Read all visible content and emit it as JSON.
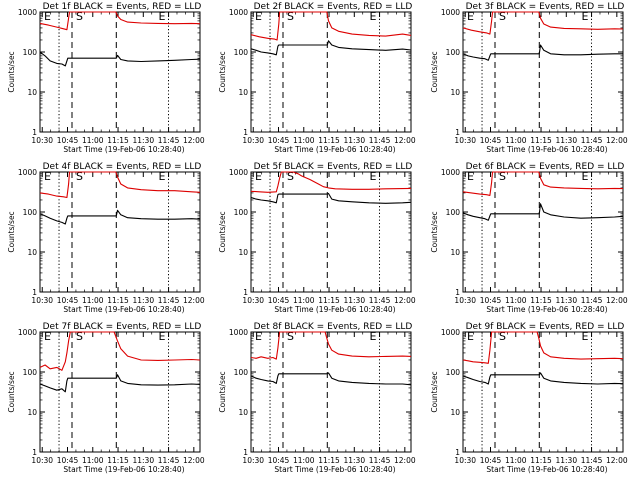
{
  "figure": {
    "panel_titles": [
      "Det 1f BLACK = Events, RED = LLD",
      "Det 2f BLACK = Events, RED = LLD",
      "Det 3f BLACK = Events, RED = LLD",
      "Det 4f BLACK = Events, RED = LLD",
      "Det 5f BLACK = Events, RED = LLD",
      "Det 6f BLACK = Events, RED = LLD",
      "Det 7f BLACK = Events, RED = LLD",
      "Det 8f BLACK = Events, RED = LLD",
      "Det 9f BLACK = Events, RED = LLD"
    ],
    "xlabel": "Start Time (19-Feb-06 10:28:40)",
    "ylabel": "Counts/sec",
    "x_tick_labels": [
      "10:30",
      "10:45",
      "11:00",
      "11:15",
      "11:30",
      "11:45",
      "12:00"
    ],
    "y_tick_labels": [
      "1",
      "10",
      "100",
      "1000"
    ],
    "marker_labels": [
      "E",
      "S",
      "E"
    ],
    "colors": {
      "events": "#000000",
      "lld": "#dd0000",
      "frame": "#000000"
    }
  },
  "chart_data": [
    {
      "type": "line",
      "title": "Det 1f BLACK = Events, RED = LLD",
      "xlabel": "Start Time (19-Feb-06 10:28:40)",
      "ylabel": "Counts/sec",
      "x_unit": "minutes after 10:28:40",
      "ylim": [
        1,
        1000
      ],
      "yscale": "log",
      "xlim": [
        0,
        95
      ],
      "vlines": [
        {
          "x": 11.3,
          "style": "dotted"
        },
        {
          "x": 19,
          "style": "dashed"
        },
        {
          "x": 45.3,
          "style": "dashed"
        },
        {
          "x": 76.3,
          "style": "dotted"
        }
      ],
      "series": [
        {
          "name": "LLD",
          "color": "#dd0000",
          "x": [
            0,
            5,
            10,
            14,
            16,
            17,
            17.5,
            19,
            45,
            46,
            48,
            52,
            60,
            70,
            80,
            90,
            95
          ],
          "y": [
            520,
            470,
            420,
            380,
            360,
            700,
            1000,
            1000,
            1000,
            800,
            650,
            560,
            530,
            520,
            510,
            520,
            510
          ]
        },
        {
          "name": "Events",
          "color": "#000000",
          "x": [
            0,
            3,
            6,
            10,
            13,
            15,
            16,
            16.5,
            45.3,
            46,
            48,
            52,
            60,
            70,
            80,
            90,
            95
          ],
          "y": [
            100,
            80,
            60,
            52,
            50,
            45,
            60,
            70,
            70,
            82,
            65,
            60,
            58,
            60,
            62,
            65,
            66
          ]
        }
      ]
    },
    {
      "type": "line",
      "title": "Det 2f BLACK = Events, RED = LLD",
      "xlabel": "Start Time (19-Feb-06 10:28:40)",
      "ylabel": "Counts/sec",
      "x_unit": "minutes after 10:28:40",
      "ylim": [
        1,
        1000
      ],
      "yscale": "log",
      "xlim": [
        0,
        95
      ],
      "vlines": [
        {
          "x": 11.3,
          "style": "dotted"
        },
        {
          "x": 19,
          "style": "dashed"
        },
        {
          "x": 45.3,
          "style": "dashed"
        },
        {
          "x": 76.3,
          "style": "dotted"
        }
      ],
      "series": [
        {
          "name": "LLD",
          "color": "#dd0000",
          "x": [
            0,
            5,
            10,
            14,
            15.5,
            16.5,
            17,
            19,
            45,
            46,
            48,
            52,
            60,
            70,
            80,
            90,
            95
          ],
          "y": [
            270,
            240,
            220,
            210,
            200,
            500,
            1000,
            1000,
            1000,
            600,
            400,
            330,
            280,
            260,
            250,
            280,
            260
          ]
        },
        {
          "name": "Events",
          "color": "#000000",
          "x": [
            0,
            3,
            6,
            10,
            13,
            15,
            16,
            16.5,
            45.3,
            46,
            48,
            52,
            60,
            70,
            80,
            90,
            95
          ],
          "y": [
            120,
            110,
            100,
            95,
            90,
            85,
            140,
            150,
            150,
            190,
            150,
            130,
            120,
            115,
            110,
            118,
            112
          ]
        }
      ]
    },
    {
      "type": "line",
      "title": "Det 3f BLACK = Events, RED = LLD",
      "xlabel": "Start Time (19-Feb-06 10:28:40)",
      "ylabel": "Counts/sec",
      "x_unit": "minutes after 10:28:40",
      "ylim": [
        1,
        1000
      ],
      "yscale": "log",
      "xlim": [
        0,
        95
      ],
      "vlines": [
        {
          "x": 11.3,
          "style": "dotted"
        },
        {
          "x": 19,
          "style": "dashed"
        },
        {
          "x": 45.3,
          "style": "dashed"
        },
        {
          "x": 76.3,
          "style": "dotted"
        }
      ],
      "series": [
        {
          "name": "LLD",
          "color": "#dd0000",
          "x": [
            0,
            5,
            10,
            14,
            16,
            17,
            17.5,
            19,
            45,
            46,
            48,
            52,
            60,
            70,
            80,
            90,
            95
          ],
          "y": [
            400,
            350,
            320,
            300,
            280,
            600,
            1000,
            1000,
            1000,
            700,
            500,
            420,
            390,
            380,
            370,
            380,
            375
          ]
        },
        {
          "name": "Events",
          "color": "#000000",
          "x": [
            0,
            3,
            6,
            10,
            13,
            15,
            16,
            16.5,
            45.3,
            46,
            48,
            52,
            60,
            70,
            80,
            90,
            95
          ],
          "y": [
            90,
            80,
            75,
            70,
            68,
            62,
            80,
            90,
            90,
            150,
            110,
            90,
            85,
            85,
            88,
            90,
            90
          ]
        }
      ]
    },
    {
      "type": "line",
      "title": "Det 4f BLACK = Events, RED = LLD",
      "xlabel": "Start Time (19-Feb-06 10:28:40)",
      "ylabel": "Counts/sec",
      "x_unit": "minutes after 10:28:40",
      "ylim": [
        1,
        1000
      ],
      "yscale": "log",
      "xlim": [
        0,
        95
      ],
      "vlines": [
        {
          "x": 11.3,
          "style": "dotted"
        },
        {
          "x": 19,
          "style": "dashed"
        },
        {
          "x": 45.3,
          "style": "dashed"
        },
        {
          "x": 76.3,
          "style": "dotted"
        }
      ],
      "series": [
        {
          "name": "LLD",
          "color": "#dd0000",
          "x": [
            0,
            5,
            10,
            14,
            16,
            17,
            17.5,
            19,
            45,
            46,
            48,
            52,
            60,
            70,
            80,
            90,
            95
          ],
          "y": [
            300,
            280,
            250,
            240,
            230,
            500,
            1000,
            1000,
            1000,
            750,
            500,
            400,
            360,
            340,
            340,
            320,
            310
          ]
        },
        {
          "name": "Events",
          "color": "#000000",
          "x": [
            0,
            3,
            6,
            10,
            13,
            15,
            16,
            16.5,
            45.3,
            46,
            48,
            52,
            60,
            70,
            80,
            90,
            95
          ],
          "y": [
            90,
            80,
            70,
            60,
            55,
            50,
            70,
            80,
            80,
            110,
            85,
            72,
            68,
            66,
            66,
            68,
            66
          ]
        }
      ]
    },
    {
      "type": "line",
      "title": "Det 5f BLACK = Events, RED = LLD",
      "xlabel": "Start Time (19-Feb-06 10:28:40)",
      "ylabel": "Counts/sec",
      "x_unit": "minutes after 10:28:40",
      "ylim": [
        1,
        1000
      ],
      "yscale": "log",
      "xlim": [
        0,
        95
      ],
      "vlines": [
        {
          "x": 11.3,
          "style": "dotted"
        },
        {
          "x": 19,
          "style": "dashed"
        },
        {
          "x": 45.3,
          "style": "dashed"
        },
        {
          "x": 76.3,
          "style": "dotted"
        }
      ],
      "series": [
        {
          "name": "LLD",
          "color": "#dd0000",
          "x": [
            0,
            5,
            10,
            15,
            16,
            17,
            18,
            25,
            28,
            30,
            35,
            40,
            43,
            46,
            50,
            60,
            70,
            80,
            95
          ],
          "y": [
            330,
            320,
            310,
            320,
            450,
            700,
            1000,
            1000,
            900,
            800,
            650,
            500,
            430,
            400,
            380,
            370,
            370,
            380,
            390
          ]
        },
        {
          "name": "Events",
          "color": "#000000",
          "x": [
            0,
            3,
            6,
            10,
            13,
            15,
            16,
            16.5,
            45.3,
            46,
            48,
            52,
            60,
            70,
            80,
            90,
            95
          ],
          "y": [
            230,
            210,
            200,
            190,
            180,
            170,
            270,
            280,
            280,
            290,
            210,
            190,
            180,
            170,
            165,
            170,
            175
          ]
        }
      ]
    },
    {
      "type": "line",
      "title": "Det 6f BLACK = Events, RED = LLD",
      "xlabel": "Start Time (19-Feb-06 10:28:40)",
      "ylabel": "Counts/sec",
      "x_unit": "minutes after 10:28:40",
      "ylim": [
        1,
        1000
      ],
      "yscale": "log",
      "xlim": [
        0,
        95
      ],
      "vlines": [
        {
          "x": 11.3,
          "style": "dotted"
        },
        {
          "x": 19,
          "style": "dashed"
        },
        {
          "x": 45.3,
          "style": "dashed"
        },
        {
          "x": 76.3,
          "style": "dotted"
        }
      ],
      "series": [
        {
          "name": "LLD",
          "color": "#dd0000",
          "x": [
            0,
            5,
            10,
            14,
            16,
            17,
            17.5,
            19,
            45,
            46,
            48,
            52,
            60,
            70,
            80,
            90,
            95
          ],
          "y": [
            320,
            300,
            280,
            270,
            260,
            550,
            1000,
            1000,
            1000,
            700,
            480,
            420,
            400,
            390,
            380,
            390,
            385
          ]
        },
        {
          "name": "Events",
          "color": "#000000",
          "x": [
            0,
            3,
            6,
            10,
            13,
            15,
            16,
            16.5,
            45.3,
            46,
            48,
            52,
            60,
            70,
            80,
            90,
            95
          ],
          "y": [
            95,
            85,
            78,
            72,
            68,
            62,
            80,
            90,
            90,
            160,
            100,
            85,
            75,
            70,
            72,
            75,
            78
          ]
        }
      ]
    },
    {
      "type": "line",
      "title": "Det 7f BLACK = Events, RED = LLD",
      "xlabel": "Start Time (19-Feb-06 10:28:40)",
      "ylabel": "Counts/sec",
      "x_unit": "minutes after 10:28:40",
      "ylim": [
        1,
        1000
      ],
      "yscale": "log",
      "xlim": [
        0,
        95
      ],
      "vlines": [
        {
          "x": 11.3,
          "style": "dotted"
        },
        {
          "x": 19,
          "style": "dashed"
        },
        {
          "x": 45.3,
          "style": "dashed"
        },
        {
          "x": 76.3,
          "style": "dotted"
        }
      ],
      "series": [
        {
          "name": "LLD",
          "color": "#dd0000",
          "x": [
            0,
            3,
            6,
            10,
            13,
            15,
            16,
            17,
            18,
            19,
            44,
            46,
            48,
            52,
            60,
            70,
            80,
            90,
            95
          ],
          "y": [
            130,
            150,
            120,
            130,
            110,
            180,
            300,
            600,
            1000,
            1000,
            1000,
            600,
            380,
            250,
            200,
            195,
            200,
            205,
            200
          ]
        },
        {
          "name": "Events",
          "color": "#000000",
          "x": [
            0,
            3,
            6,
            10,
            13,
            15,
            16,
            16.5,
            45.3,
            46,
            48,
            52,
            60,
            70,
            80,
            90,
            95
          ],
          "y": [
            50,
            45,
            40,
            35,
            38,
            32,
            60,
            70,
            70,
            85,
            60,
            52,
            48,
            47,
            48,
            50,
            49
          ]
        }
      ]
    },
    {
      "type": "line",
      "title": "Det 8f BLACK = Events, RED = LLD",
      "xlabel": "Start Time (19-Feb-06 10:28:40)",
      "ylabel": "Counts/sec",
      "x_unit": "minutes after 10:28:40",
      "ylim": [
        1,
        1000
      ],
      "yscale": "log",
      "xlim": [
        0,
        95
      ],
      "vlines": [
        {
          "x": 11.3,
          "style": "dotted"
        },
        {
          "x": 19,
          "style": "dashed"
        },
        {
          "x": 45.3,
          "style": "dashed"
        },
        {
          "x": 76.3,
          "style": "dotted"
        }
      ],
      "series": [
        {
          "name": "LLD",
          "color": "#dd0000",
          "x": [
            0,
            3,
            6,
            10,
            13,
            15,
            16,
            17,
            19,
            44,
            45,
            46,
            48,
            52,
            60,
            70,
            80,
            90,
            95
          ],
          "y": [
            230,
            220,
            240,
            220,
            230,
            210,
            400,
            1000,
            1000,
            1000,
            700,
            500,
            350,
            280,
            250,
            240,
            245,
            250,
            245
          ]
        },
        {
          "name": "Events",
          "color": "#000000",
          "x": [
            0,
            3,
            6,
            10,
            13,
            15,
            16,
            16.5,
            45.3,
            46,
            48,
            52,
            60,
            70,
            80,
            90,
            95
          ],
          "y": [
            80,
            70,
            65,
            60,
            58,
            52,
            80,
            90,
            90,
            95,
            70,
            60,
            55,
            52,
            50,
            50,
            48
          ]
        }
      ]
    },
    {
      "type": "line",
      "title": "Det 9f BLACK = Events, RED = LLD",
      "xlabel": "Start Time (19-Feb-06 10:28:40)",
      "ylabel": "Counts/sec",
      "x_unit": "minutes after 10:28:40",
      "ylim": [
        1,
        1000
      ],
      "yscale": "log",
      "xlim": [
        0,
        95
      ],
      "vlines": [
        {
          "x": 11.3,
          "style": "dotted"
        },
        {
          "x": 19,
          "style": "dashed"
        },
        {
          "x": 45.3,
          "style": "dashed"
        },
        {
          "x": 76.3,
          "style": "dotted"
        }
      ],
      "series": [
        {
          "name": "LLD",
          "color": "#dd0000",
          "x": [
            0,
            3,
            6,
            10,
            13,
            15,
            16,
            17,
            19,
            44,
            45,
            46,
            48,
            52,
            60,
            70,
            80,
            90,
            95
          ],
          "y": [
            200,
            190,
            180,
            175,
            170,
            165,
            350,
            1000,
            1000,
            1000,
            700,
            450,
            300,
            240,
            220,
            210,
            215,
            220,
            215
          ]
        },
        {
          "name": "Events",
          "color": "#000000",
          "x": [
            0,
            3,
            6,
            10,
            13,
            15,
            16,
            16.5,
            45.3,
            46,
            48,
            52,
            60,
            70,
            80,
            90,
            95
          ],
          "y": [
            80,
            72,
            65,
            58,
            55,
            50,
            75,
            85,
            85,
            95,
            70,
            60,
            55,
            52,
            50,
            52,
            51
          ]
        }
      ]
    }
  ]
}
